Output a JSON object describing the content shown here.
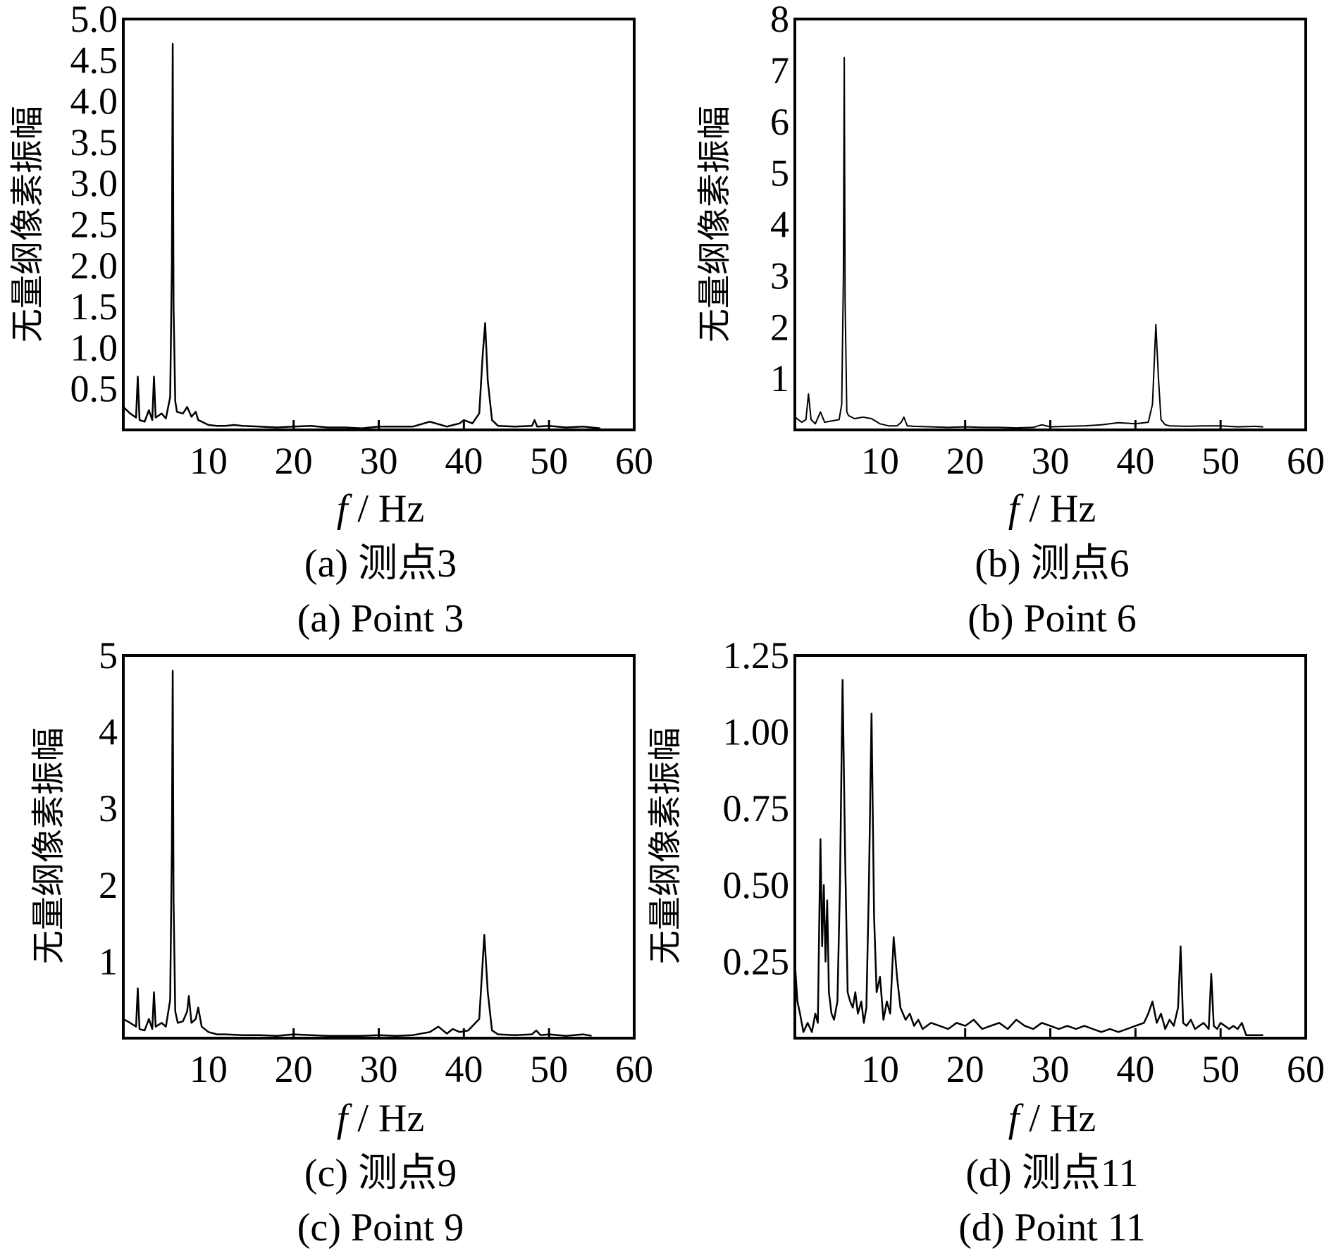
{
  "chart_data": [
    {
      "type": "line",
      "caption_cn": "(a)  测点3",
      "caption_en": "(a)  Point 3",
      "xlabel_var": "f",
      "xlabel_unit": " / Hz",
      "ylabel": "无量纲像素振幅",
      "xlim": [
        0,
        60
      ],
      "ylim": [
        0,
        5.0
      ],
      "x_ticks": [
        10,
        20,
        30,
        40,
        50,
        60
      ],
      "y_ticks": [
        "0.5",
        "1.0",
        "1.5",
        "2.0",
        "2.5",
        "3.0",
        "3.5",
        "4.0",
        "4.5",
        "5.0"
      ],
      "x_ticks_minor": [
        20,
        30,
        40,
        50
      ],
      "series": [
        {
          "color": "#000000",
          "x": [
            0.0,
            0.8,
            1.5,
            1.7,
            1.9,
            2.5,
            3.0,
            3.4,
            3.6,
            3.8,
            4.5,
            5.0,
            5.5,
            5.7,
            5.8,
            5.9,
            6.1,
            6.3,
            7.0,
            7.5,
            8.0,
            8.5,
            8.8,
            9.2,
            10.0,
            11.0,
            12.0,
            13.0,
            14.0,
            16.0,
            18.0,
            20.0,
            22.0,
            24.0,
            26.0,
            28.0,
            30.0,
            32.0,
            34.0,
            36.0,
            38.0,
            39.5,
            40.0,
            41.0,
            41.8,
            42.2,
            42.5,
            42.8,
            43.3,
            44.0,
            46.0,
            48.0,
            48.3,
            48.6,
            50.0,
            52.0,
            54.0,
            56.0
          ],
          "y": [
            0.28,
            0.2,
            0.15,
            0.65,
            0.12,
            0.1,
            0.24,
            0.12,
            0.65,
            0.15,
            0.2,
            0.14,
            0.4,
            2.0,
            4.7,
            1.5,
            0.35,
            0.22,
            0.2,
            0.28,
            0.16,
            0.22,
            0.12,
            0.1,
            0.06,
            0.05,
            0.05,
            0.06,
            0.05,
            0.04,
            0.03,
            0.04,
            0.05,
            0.03,
            0.03,
            0.02,
            0.04,
            0.04,
            0.04,
            0.1,
            0.04,
            0.08,
            0.12,
            0.08,
            0.2,
            0.9,
            1.3,
            0.6,
            0.12,
            0.05,
            0.04,
            0.05,
            0.12,
            0.04,
            0.05,
            0.03,
            0.04,
            0.02
          ]
        }
      ]
    },
    {
      "type": "line",
      "caption_cn": "(b)  测点6",
      "caption_en": "(b)  Point 6",
      "xlabel_var": "f",
      "xlabel_unit": " / Hz",
      "ylabel": "无量纲像素振幅",
      "xlim": [
        0,
        60
      ],
      "ylim": [
        0,
        8
      ],
      "x_ticks": [
        10,
        20,
        30,
        40,
        50,
        60
      ],
      "y_ticks": [
        "1",
        "2",
        "3",
        "4",
        "5",
        "6",
        "7",
        "8"
      ],
      "x_ticks_minor": [
        20,
        30,
        40,
        50
      ],
      "series": [
        {
          "color": "#000000",
          "x": [
            0.0,
            0.8,
            1.3,
            1.6,
            1.9,
            2.4,
            3.0,
            3.5,
            4.5,
            5.2,
            5.5,
            5.7,
            5.8,
            5.9,
            6.1,
            6.3,
            7.0,
            8.0,
            9.0,
            10.0,
            11.0,
            12.0,
            12.5,
            12.8,
            13.2,
            14.0,
            16.0,
            18.0,
            20.0,
            22.0,
            24.0,
            26.0,
            28.0,
            29.0,
            30.0,
            32.0,
            34.0,
            36.0,
            38.0,
            40.0,
            41.5,
            42.0,
            42.4,
            42.7,
            43.0,
            43.5,
            44.0,
            46.0,
            48.0,
            50.0,
            52.0,
            54.0,
            55.0
          ],
          "y": [
            0.25,
            0.15,
            0.2,
            0.7,
            0.2,
            0.12,
            0.35,
            0.15,
            0.18,
            0.2,
            0.5,
            3.0,
            7.25,
            2.5,
            0.35,
            0.28,
            0.22,
            0.25,
            0.22,
            0.12,
            0.08,
            0.08,
            0.15,
            0.25,
            0.08,
            0.07,
            0.06,
            0.05,
            0.06,
            0.05,
            0.05,
            0.04,
            0.05,
            0.1,
            0.06,
            0.07,
            0.08,
            0.1,
            0.14,
            0.12,
            0.15,
            0.5,
            2.05,
            1.0,
            0.2,
            0.1,
            0.08,
            0.07,
            0.08,
            0.08,
            0.06,
            0.07,
            0.06
          ]
        }
      ]
    },
    {
      "type": "line",
      "caption_cn": "(c)  测点9",
      "caption_en": "(c)  Point 9",
      "xlabel_var": "f",
      "xlabel_unit": " / Hz",
      "ylabel": "无量纲像素振幅",
      "xlim": [
        0,
        60
      ],
      "ylim": [
        0,
        5
      ],
      "x_ticks": [
        10,
        20,
        30,
        40,
        50,
        60
      ],
      "y_ticks": [
        "1",
        "2",
        "3",
        "4",
        "5"
      ],
      "x_ticks_minor": [
        20,
        30,
        40,
        50
      ],
      "series": [
        {
          "color": "#000000",
          "x": [
            0.0,
            0.8,
            1.5,
            1.7,
            1.9,
            2.5,
            3.0,
            3.4,
            3.6,
            3.8,
            4.5,
            5.0,
            5.5,
            5.7,
            5.8,
            5.9,
            6.1,
            6.4,
            7.0,
            7.5,
            7.7,
            8.0,
            8.5,
            8.8,
            9.2,
            10.0,
            11.0,
            12.0,
            14.0,
            16.0,
            18.0,
            20.0,
            22.0,
            24.0,
            26.0,
            28.0,
            30.0,
            32.0,
            34.0,
            36.0,
            37.0,
            38.0,
            38.7,
            39.5,
            40.5,
            41.8,
            42.4,
            42.8,
            43.3,
            44.0,
            46.0,
            48.0,
            48.5,
            49.0,
            50.0,
            52.0,
            54.0,
            55.0
          ],
          "y": [
            0.25,
            0.2,
            0.15,
            0.65,
            0.12,
            0.1,
            0.25,
            0.12,
            0.6,
            0.15,
            0.2,
            0.15,
            0.5,
            2.5,
            4.8,
            1.8,
            0.35,
            0.2,
            0.22,
            0.35,
            0.55,
            0.2,
            0.25,
            0.4,
            0.15,
            0.08,
            0.05,
            0.05,
            0.04,
            0.04,
            0.03,
            0.05,
            0.04,
            0.03,
            0.03,
            0.03,
            0.04,
            0.03,
            0.04,
            0.08,
            0.15,
            0.06,
            0.12,
            0.08,
            0.1,
            0.25,
            1.35,
            0.6,
            0.1,
            0.05,
            0.04,
            0.05,
            0.1,
            0.04,
            0.05,
            0.03,
            0.05,
            0.03
          ]
        }
      ]
    },
    {
      "type": "line",
      "caption_cn": "(d)  测点11",
      "caption_en": "(d)  Point 11",
      "xlabel_var": "f",
      "xlabel_unit": " / Hz",
      "ylabel": "无量纲像素振幅",
      "xlim": [
        0,
        60
      ],
      "ylim": [
        0,
        1.25
      ],
      "x_ticks": [
        10,
        20,
        30,
        40,
        50,
        60
      ],
      "y_ticks": [
        "0.25",
        "0.50",
        "0.75",
        "1.00",
        "1.25"
      ],
      "x_ticks_minor": [
        20,
        30,
        40,
        50
      ],
      "series": [
        {
          "color": "#000000",
          "x": [
            0.0,
            0.3,
            0.6,
            1.0,
            1.5,
            2.0,
            2.4,
            2.7,
            3.0,
            3.2,
            3.4,
            3.6,
            3.8,
            4.0,
            4.3,
            4.6,
            5.0,
            5.3,
            5.6,
            5.9,
            6.2,
            6.5,
            6.8,
            7.1,
            7.4,
            7.8,
            8.1,
            8.4,
            8.7,
            9.0,
            9.3,
            9.6,
            10.0,
            10.4,
            10.8,
            11.2,
            11.6,
            12.0,
            12.4,
            13.0,
            13.5,
            14.0,
            14.5,
            15.0,
            16.0,
            17.0,
            18.0,
            19.0,
            20.0,
            21.0,
            22.0,
            23.0,
            24.0,
            25.0,
            26.0,
            27.0,
            28.0,
            29.0,
            30.0,
            31.0,
            32.0,
            33.0,
            34.0,
            35.0,
            36.0,
            37.0,
            38.0,
            39.0,
            40.0,
            41.0,
            41.5,
            42.0,
            42.5,
            43.0,
            43.5,
            44.0,
            44.5,
            45.0,
            45.3,
            45.6,
            46.0,
            46.5,
            47.0,
            48.0,
            48.6,
            48.9,
            49.2,
            49.6,
            50.0,
            51.0,
            51.5,
            52.0,
            52.5,
            53.0,
            55.0
          ],
          "y": [
            0.25,
            0.12,
            0.08,
            0.02,
            0.05,
            0.02,
            0.08,
            0.05,
            0.65,
            0.3,
            0.5,
            0.25,
            0.45,
            0.15,
            0.08,
            0.06,
            0.12,
            0.5,
            1.17,
            0.6,
            0.15,
            0.12,
            0.1,
            0.15,
            0.08,
            0.12,
            0.05,
            0.1,
            0.5,
            1.06,
            0.4,
            0.15,
            0.2,
            0.06,
            0.12,
            0.08,
            0.33,
            0.2,
            0.1,
            0.06,
            0.08,
            0.04,
            0.06,
            0.03,
            0.05,
            0.04,
            0.03,
            0.05,
            0.04,
            0.06,
            0.03,
            0.04,
            0.05,
            0.03,
            0.06,
            0.04,
            0.03,
            0.05,
            0.04,
            0.03,
            0.04,
            0.03,
            0.04,
            0.03,
            0.02,
            0.03,
            0.02,
            0.03,
            0.04,
            0.05,
            0.08,
            0.12,
            0.05,
            0.08,
            0.03,
            0.06,
            0.04,
            0.1,
            0.3,
            0.05,
            0.04,
            0.06,
            0.03,
            0.05,
            0.03,
            0.21,
            0.04,
            0.03,
            0.05,
            0.03,
            0.04,
            0.03,
            0.05,
            0.01,
            0.01
          ]
        }
      ]
    }
  ]
}
